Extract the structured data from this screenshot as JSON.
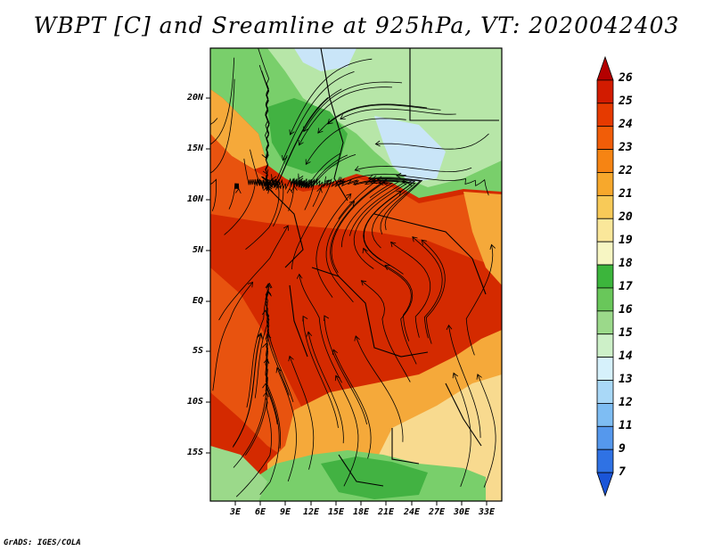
{
  "title": "WBPT [C] and Sreamline at 925hPa, VT: 2020042403",
  "credit": "GrADS: IGES/COLA",
  "map": {
    "lat_labels": [
      "20N",
      "15N",
      "10N",
      "5N",
      "EQ",
      "5S",
      "10S",
      "15S"
    ],
    "lon_labels": [
      "3E",
      "6E",
      "9E",
      "12E",
      "15E",
      "18E",
      "21E",
      "24E",
      "27E",
      "30E",
      "33E"
    ]
  },
  "colorbar": {
    "labels": [
      "26",
      "25",
      "24",
      "23",
      "22",
      "21",
      "20",
      "19",
      "18",
      "17",
      "16",
      "15",
      "14",
      "13",
      "12",
      "11",
      "9",
      "7"
    ],
    "colors": [
      "#b40000",
      "#d21b00",
      "#e63a00",
      "#f15d08",
      "#f68413",
      "#f7a82c",
      "#f8ca58",
      "#fae79a",
      "#f7f6c3",
      "#3cb53c",
      "#69c75a",
      "#9bd98a",
      "#cdf0c8",
      "#d6f1fb",
      "#a9d8f7",
      "#7ebdf3",
      "#5598ed",
      "#2f72e4",
      "#1a55d8"
    ]
  },
  "palette": {
    "hot": "#d42a00",
    "warm": "#e8530f",
    "orange": "#f5a93a",
    "tan": "#f8da8f",
    "green_dark": "#42b242",
    "green": "#79cf6b",
    "green_light": "#b7e6a8",
    "blue_light": "#c9e5f8"
  }
}
